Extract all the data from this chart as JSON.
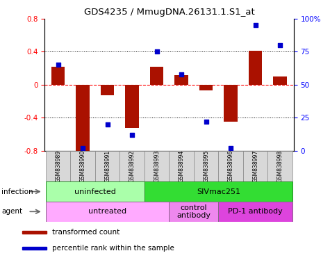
{
  "title": "GDS4235 / MmugDNA.26131.1.S1_at",
  "samples": [
    "GSM838989",
    "GSM838990",
    "GSM838991",
    "GSM838992",
    "GSM838993",
    "GSM838994",
    "GSM838995",
    "GSM838996",
    "GSM838997",
    "GSM838998"
  ],
  "bar_values": [
    0.22,
    -0.8,
    -0.13,
    -0.52,
    0.22,
    0.12,
    -0.07,
    -0.45,
    0.41,
    0.1
  ],
  "dot_values": [
    65,
    2,
    20,
    12,
    75,
    58,
    22,
    2,
    95,
    80
  ],
  "bar_color": "#aa1100",
  "dot_color": "#0000cc",
  "ylim_left": [
    -0.8,
    0.8
  ],
  "ylim_right": [
    0,
    100
  ],
  "yticks_left": [
    -0.8,
    -0.4,
    0.0,
    0.4,
    0.8
  ],
  "ytick_labels_left": [
    "-0.8",
    "-0.4",
    "0",
    "0.4",
    "0.8"
  ],
  "yticks_right": [
    0,
    25,
    50,
    75,
    100
  ],
  "ytick_labels_right": [
    "0",
    "25",
    "50",
    "75",
    "100%"
  ],
  "infection_groups": [
    {
      "label": "uninfected",
      "start": 0,
      "end": 3,
      "color": "#aaffaa"
    },
    {
      "label": "SIVmac251",
      "start": 4,
      "end": 9,
      "color": "#33dd33"
    }
  ],
  "agent_groups": [
    {
      "label": "untreated",
      "start": 0,
      "end": 4,
      "color": "#ffaaff"
    },
    {
      "label": "control\nantibody",
      "start": 5,
      "end": 6,
      "color": "#ee88ee"
    },
    {
      "label": "PD-1 antibody",
      "start": 7,
      "end": 9,
      "color": "#dd44dd"
    }
  ],
  "legend_items": [
    {
      "label": "transformed count",
      "color": "#aa1100"
    },
    {
      "label": "percentile rank within the sample",
      "color": "#0000cc"
    }
  ],
  "bg_color": "#ffffff"
}
